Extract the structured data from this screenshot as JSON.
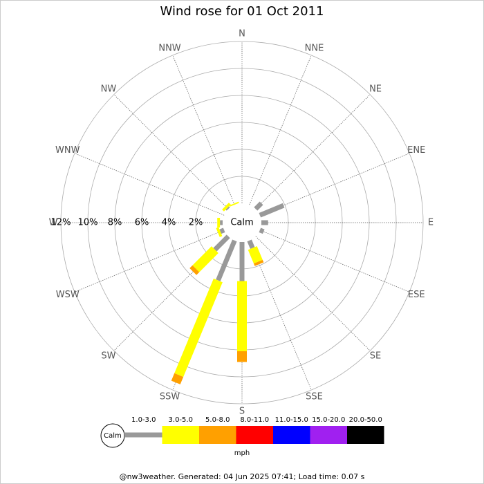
{
  "chart_data": {
    "type": "wind_rose",
    "title": "Wind rose for 01 Oct 2011",
    "categories": [
      "N",
      "NNE",
      "NE",
      "ENE",
      "E",
      "ESE",
      "SE",
      "SSE",
      "S",
      "SSW",
      "SW",
      "WSW",
      "W",
      "WNW",
      "NW",
      "NNW"
    ],
    "calm_label": "Calm",
    "rlim": [
      0,
      12
    ],
    "rticks": [
      {
        "value": 2,
        "label": "2%"
      },
      {
        "value": 4,
        "label": "4%"
      },
      {
        "value": 6,
        "label": "6%"
      },
      {
        "value": 8,
        "label": "8%"
      },
      {
        "value": 10,
        "label": "10%"
      },
      {
        "value": 12,
        "label": "12%"
      }
    ],
    "grid": true,
    "series": [
      {
        "name": "1.0-3.0",
        "color": "#999999",
        "values": [
          0,
          0,
          0.6,
          1.9,
          0.5,
          0.3,
          0,
          0.6,
          2.9,
          3.2,
          1.4,
          0.3,
          0.2,
          0,
          0.1,
          0
        ]
      },
      {
        "name": "3.0-5.0",
        "color": "#ffff00",
        "values": [
          0,
          0,
          0,
          0,
          0,
          0,
          0,
          1.1,
          5.2,
          7.6,
          2.0,
          0.2,
          0.2,
          0,
          0.2,
          0.1
        ]
      },
      {
        "name": "5.0-8.0",
        "color": "#ffa000",
        "values": [
          0,
          0,
          0,
          0,
          0,
          0,
          0,
          0.2,
          0.8,
          0.6,
          0.3,
          0,
          0,
          0,
          0,
          0
        ]
      },
      {
        "name": "8.0-11.0",
        "color": "#ff0000",
        "values": [
          0,
          0,
          0,
          0,
          0,
          0,
          0,
          0,
          0,
          0,
          0,
          0,
          0,
          0,
          0,
          0
        ]
      },
      {
        "name": "11.0-15.0",
        "color": "#0000ff",
        "values": [
          0,
          0,
          0,
          0,
          0,
          0,
          0,
          0,
          0,
          0,
          0,
          0,
          0,
          0,
          0,
          0
        ]
      },
      {
        "name": "15.0-20.0",
        "color": "#a020f0",
        "values": [
          0,
          0,
          0,
          0,
          0,
          0,
          0,
          0,
          0,
          0,
          0,
          0,
          0,
          0,
          0,
          0
        ]
      },
      {
        "name": "20.0-50.0",
        "color": "#000000",
        "values": [
          0,
          0,
          0,
          0,
          0,
          0,
          0,
          0,
          0,
          0,
          0,
          0,
          0,
          0,
          0,
          0
        ]
      }
    ],
    "unit": "mph",
    "footer": "@nw3weather. Generated: 04 Jun 2025 07:41; Load time: 0.07 s"
  }
}
